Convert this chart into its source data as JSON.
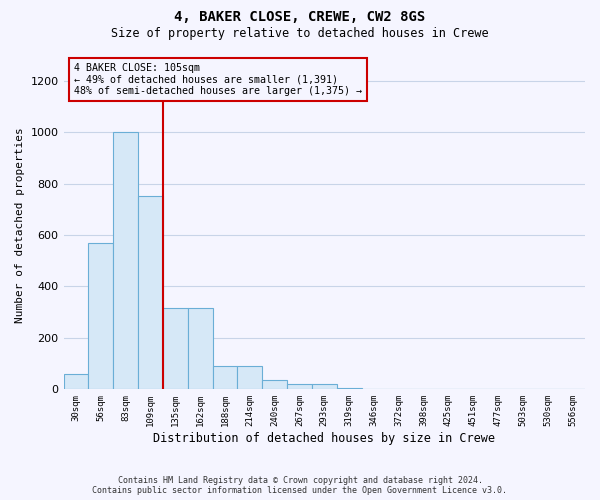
{
  "title": "4, BAKER CLOSE, CREWE, CW2 8GS",
  "subtitle": "Size of property relative to detached houses in Crewe",
  "xlabel": "Distribution of detached houses by size in Crewe",
  "ylabel": "Number of detached properties",
  "bar_color": "#d6e8f7",
  "bar_edge_color": "#6aaed6",
  "bin_labels": [
    "30sqm",
    "56sqm",
    "83sqm",
    "109sqm",
    "135sqm",
    "162sqm",
    "188sqm",
    "214sqm",
    "240sqm",
    "267sqm",
    "293sqm",
    "319sqm",
    "346sqm",
    "372sqm",
    "398sqm",
    "425sqm",
    "451sqm",
    "477sqm",
    "503sqm",
    "530sqm",
    "556sqm"
  ],
  "bar_heights": [
    60,
    570,
    1000,
    750,
    315,
    315,
    90,
    90,
    35,
    20,
    20,
    5,
    2,
    1,
    1,
    0,
    0,
    0,
    0,
    0,
    0
  ],
  "n_bars": 21,
  "property_line_label": "4 BAKER CLOSE: 105sqm",
  "annotation_line1": "← 49% of detached houses are smaller (1,391)",
  "annotation_line2": "48% of semi-detached houses are larger (1,375) →",
  "ylim": [
    0,
    1280
  ],
  "yticks": [
    0,
    200,
    400,
    600,
    800,
    1000,
    1200
  ],
  "red_line_color": "#cc0000",
  "footer_line1": "Contains HM Land Registry data © Crown copyright and database right 2024.",
  "footer_line2": "Contains public sector information licensed under the Open Government Licence v3.0.",
  "background_color": "#f5f5ff",
  "grid_color": "#c8d4e8"
}
